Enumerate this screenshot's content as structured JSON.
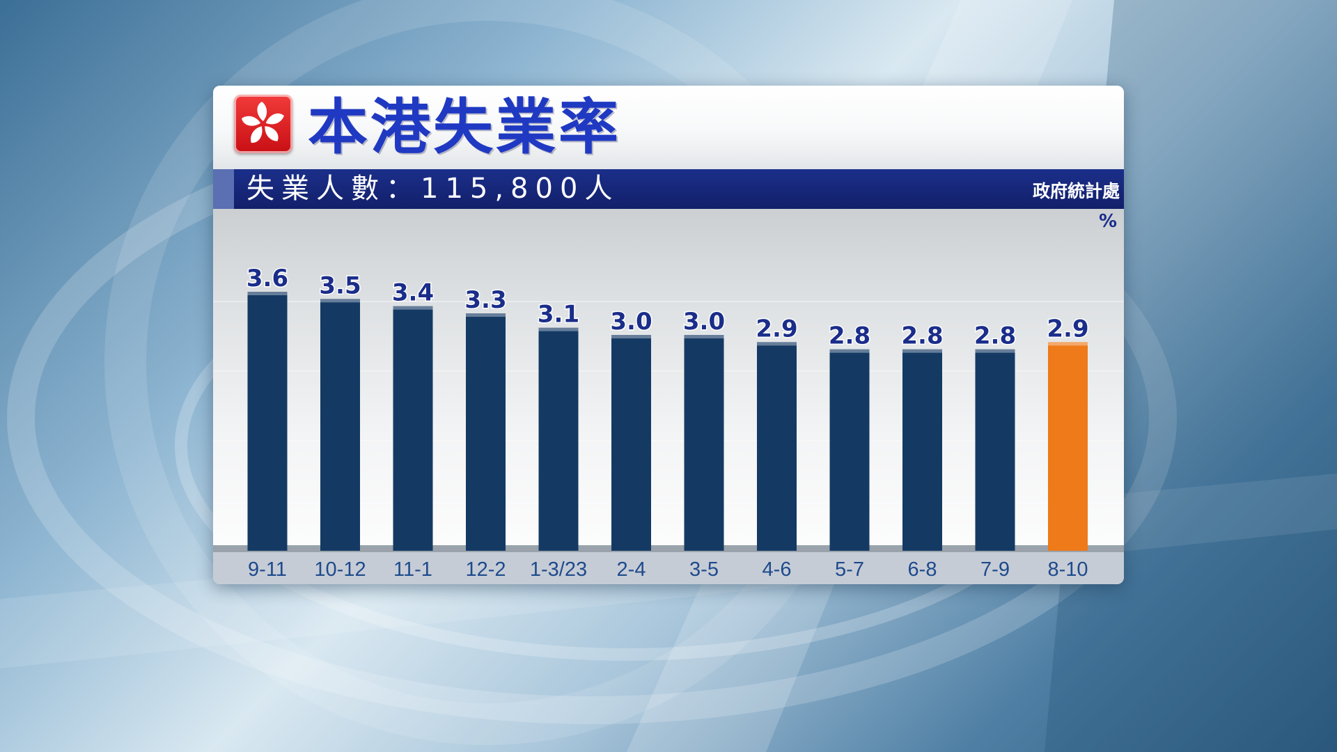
{
  "header": {
    "title": "本港失業率",
    "subtitle": "失業人數：115,800人",
    "source": "政府統計處",
    "unit": "%"
  },
  "icons": {
    "logo": "hong-kong-bauhinia-flag"
  },
  "colors": {
    "bar": "#143a64",
    "highlight_bar": "#ee7a19",
    "title": "#1f39c2",
    "label": "#1a2d8a",
    "subtitle_bar": "#17277a"
  },
  "chart_data": {
    "type": "bar",
    "categories": [
      "9-11",
      "10-12",
      "11-1",
      "12-2",
      "1-3/23",
      "2-4",
      "3-5",
      "4-6",
      "5-7",
      "6-8",
      "7-9",
      "8-10"
    ],
    "values": [
      3.6,
      3.5,
      3.4,
      3.3,
      3.1,
      3.0,
      3.0,
      2.9,
      2.8,
      2.8,
      2.8,
      2.9
    ],
    "data_labels": [
      "3.6",
      "3.5",
      "3.4",
      "3.3",
      "3.1",
      "3.0",
      "3.0",
      "2.9",
      "2.8",
      "2.8",
      "2.8",
      "2.9"
    ],
    "highlight_index": 11,
    "ylim": [
      0,
      3.6
    ],
    "grid": false,
    "legend": "none"
  }
}
